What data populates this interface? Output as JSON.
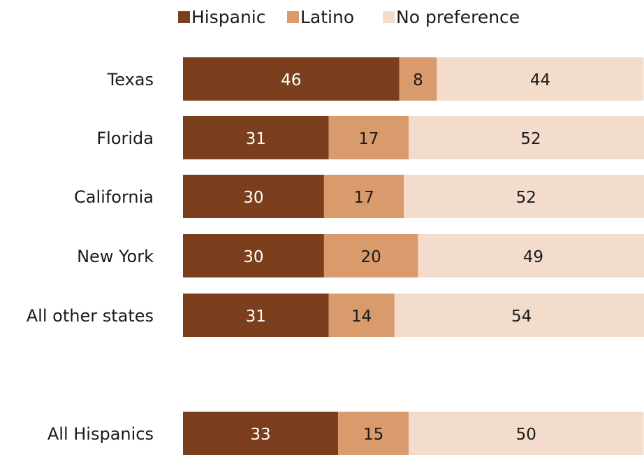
{
  "chart_data": {
    "type": "bar",
    "orientation": "horizontal",
    "stacked": true,
    "categories": [
      "Texas",
      "Florida",
      "California",
      "New York",
      "All other states",
      "All Hispanics"
    ],
    "series": [
      {
        "name": "Hispanic",
        "values": [
          46,
          31,
          30,
          30,
          31,
          33
        ],
        "color": "#7b3f1e"
      },
      {
        "name": "Latino",
        "values": [
          8,
          17,
          17,
          20,
          14,
          15
        ],
        "color": "#d99a6c"
      },
      {
        "name": "No preference",
        "values": [
          44,
          52,
          52,
          49,
          54,
          50
        ],
        "color": "#f4dccc"
      }
    ],
    "legend_position": "top",
    "grid": false,
    "xlim": [
      0,
      100
    ]
  }
}
